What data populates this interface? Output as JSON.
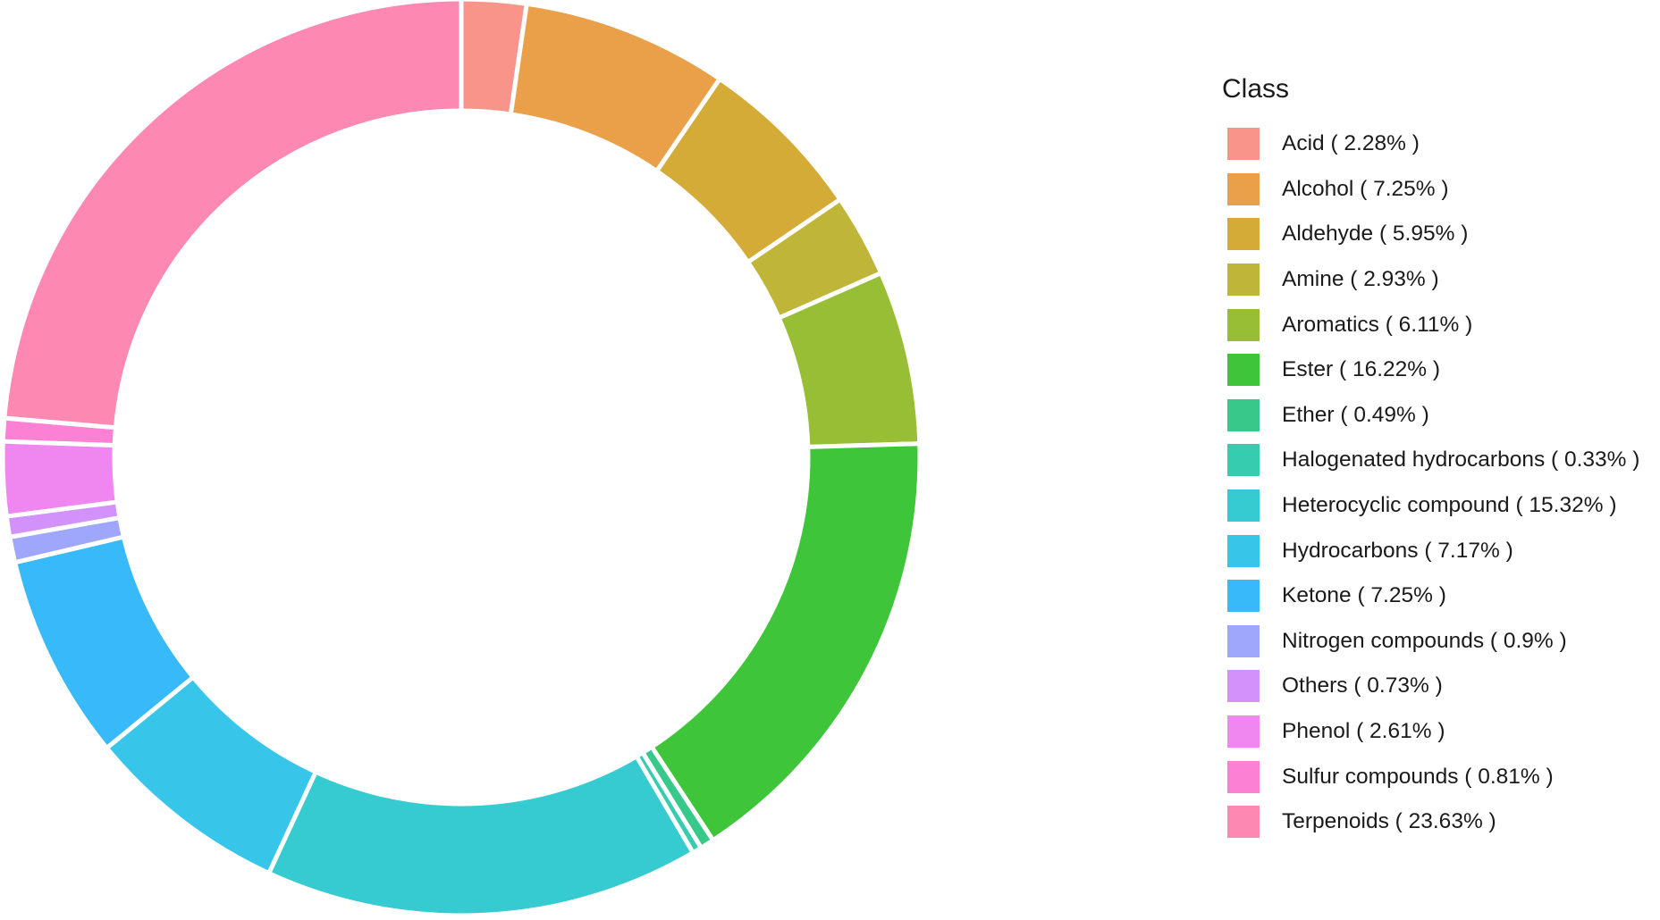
{
  "chart_data": {
    "type": "pie",
    "variant": "donut",
    "legend_title": "Class",
    "legend_position": "right",
    "slices": [
      {
        "label": "Acid ( 2.28% )",
        "value": 2.28,
        "color": "#F8948A"
      },
      {
        "label": "Alcohol ( 7.25% )",
        "value": 7.25,
        "color": "#E9A049"
      },
      {
        "label": "Aldehyde ( 5.95% )",
        "value": 5.95,
        "color": "#D5AB37"
      },
      {
        "label": "Amine ( 2.93% )",
        "value": 2.93,
        "color": "#BFB538"
      },
      {
        "label": "Aromatics ( 6.11% )",
        "value": 6.11,
        "color": "#98BE36"
      },
      {
        "label": "Ester ( 16.22% )",
        "value": 16.22,
        "color": "#3EC539"
      },
      {
        "label": "Ether ( 0.49% )",
        "value": 0.49,
        "color": "#37C98A"
      },
      {
        "label": "Halogenated hydrocarbons ( 0.33% )",
        "value": 0.33,
        "color": "#36CCB0"
      },
      {
        "label": "Heterocyclic compound ( 15.32% )",
        "value": 15.32,
        "color": "#35CBD1"
      },
      {
        "label": "Hydrocarbons ( 7.17% )",
        "value": 7.17,
        "color": "#38C5EA"
      },
      {
        "label": "Ketone ( 7.25% )",
        "value": 7.25,
        "color": "#38B9FA"
      },
      {
        "label": "Nitrogen compounds ( 0.9% )",
        "value": 0.9,
        "color": "#9FA7FC"
      },
      {
        "label": "Others ( 0.73% )",
        "value": 0.73,
        "color": "#D392FB"
      },
      {
        "label": "Phenol ( 2.61% )",
        "value": 2.61,
        "color": "#F087F0"
      },
      {
        "label": "Sulfur compounds ( 0.81% )",
        "value": 0.81,
        "color": "#FC81D5"
      },
      {
        "label": "Terpenoids ( 23.63% )",
        "value": 23.63,
        "color": "#FD88B2"
      }
    ]
  }
}
